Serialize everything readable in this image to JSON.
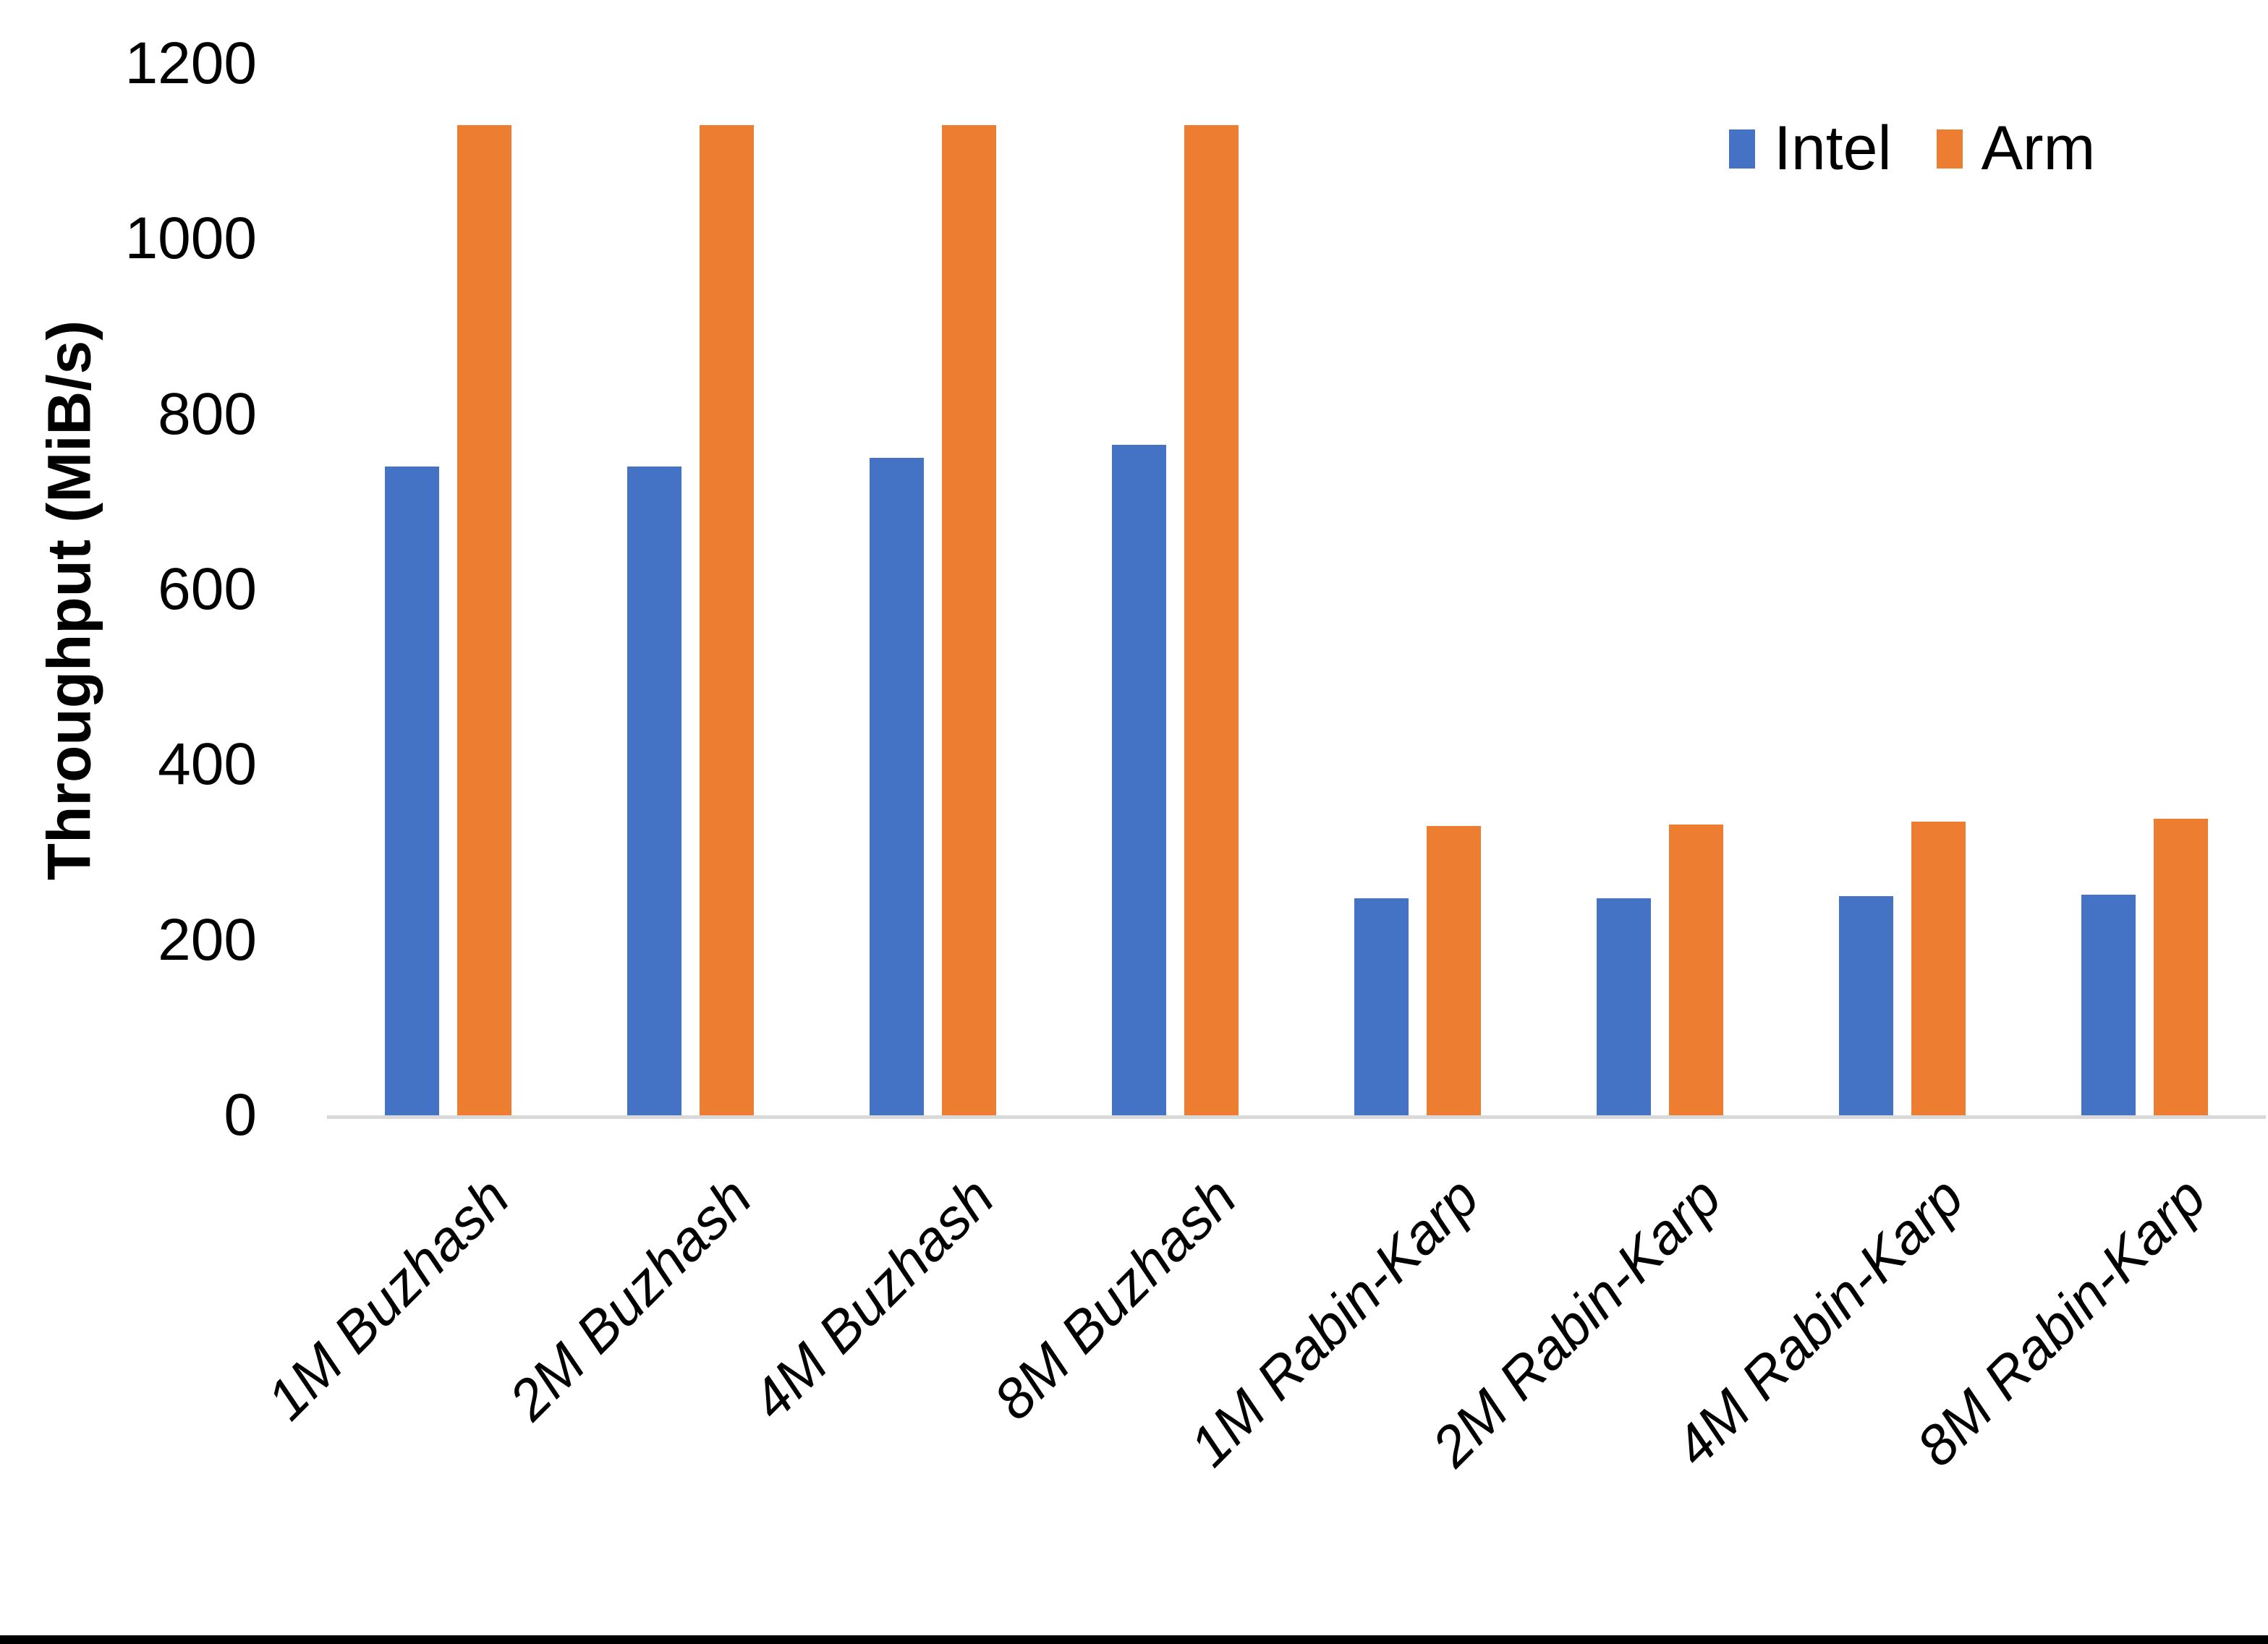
{
  "chart_data": {
    "type": "bar",
    "title": "",
    "xlabel": "",
    "ylabel": "Throughput (MiB/s)",
    "categories": [
      "1M Buzhash",
      "2M Buzhash",
      "4M Buzhash",
      "8M Buzhash",
      "1M Rabin-Karp",
      "2M Rabin-Karp",
      "4M Rabin-Karp",
      "8M Rabin-Karp"
    ],
    "series": [
      {
        "name": "Intel",
        "color": "#4472C4",
        "values": [
          740,
          740,
          750,
          765,
          248,
          248,
          250,
          252
        ]
      },
      {
        "name": "Arm",
        "color": "#ED7D31",
        "values": [
          1130,
          1130,
          1130,
          1130,
          330,
          332,
          335,
          338
        ]
      }
    ],
    "ylim": [
      0,
      1200
    ],
    "yticks": [
      0,
      200,
      400,
      600,
      800,
      1000,
      1200
    ],
    "grid": false,
    "legend_position": "top-right",
    "axis_line_color": "#D9D9D9",
    "text_color": "#000000",
    "page_border_bottom_color": "#000000"
  }
}
